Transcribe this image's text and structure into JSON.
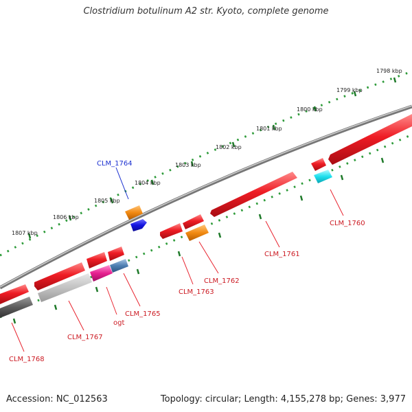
{
  "title": "Clostridium botulinum A2 str. Kyoto, complete genome",
  "footer": {
    "accession": "Accession: NC_012563",
    "summary": "Topology: circular; Length: 4,155,278 bp; Genes: 3,977"
  },
  "ticks": [
    {
      "label": "1798 kbp"
    },
    {
      "label": "1799 kbp"
    },
    {
      "label": "1800 kbp"
    },
    {
      "label": "1801 kbp"
    },
    {
      "label": "1802 kbp"
    },
    {
      "label": "1803 kbp"
    },
    {
      "label": "1804 kbp"
    },
    {
      "label": "1805 kbp"
    },
    {
      "label": "1806 kbp"
    },
    {
      "label": "1807 kbp"
    }
  ],
  "genes": [
    {
      "label": "CLM_1760",
      "color": "#e8232e"
    },
    {
      "label": "CLM_1761",
      "color": "#e8232e"
    },
    {
      "label": "CLM_1762",
      "color": "#e8232e"
    },
    {
      "label": "CLM_1763",
      "color": "#e8232e"
    },
    {
      "label": "CLM_1764",
      "color": "#1a2fd0"
    },
    {
      "label": "CLM_1765",
      "color": "#e8232e"
    },
    {
      "label": "ogt",
      "color": "#e8232e"
    },
    {
      "label": "CLM_1767",
      "color": "#e8232e"
    },
    {
      "label": "CLM_1768",
      "color": "#e8232e"
    }
  ],
  "colors": {
    "cds": "#e8232e",
    "backbone": "#888888",
    "tick_minor": "#2e9b3a",
    "tick_major": "#1f7a2a",
    "orange": "#f0921e",
    "cyan": "#22e3f0",
    "magenta": "#e8289a",
    "steelblue": "#4f7fb0",
    "blue": "#1a1adb",
    "gray_dark": "#5a5a5a",
    "gray_light": "#c4c4c4"
  }
}
